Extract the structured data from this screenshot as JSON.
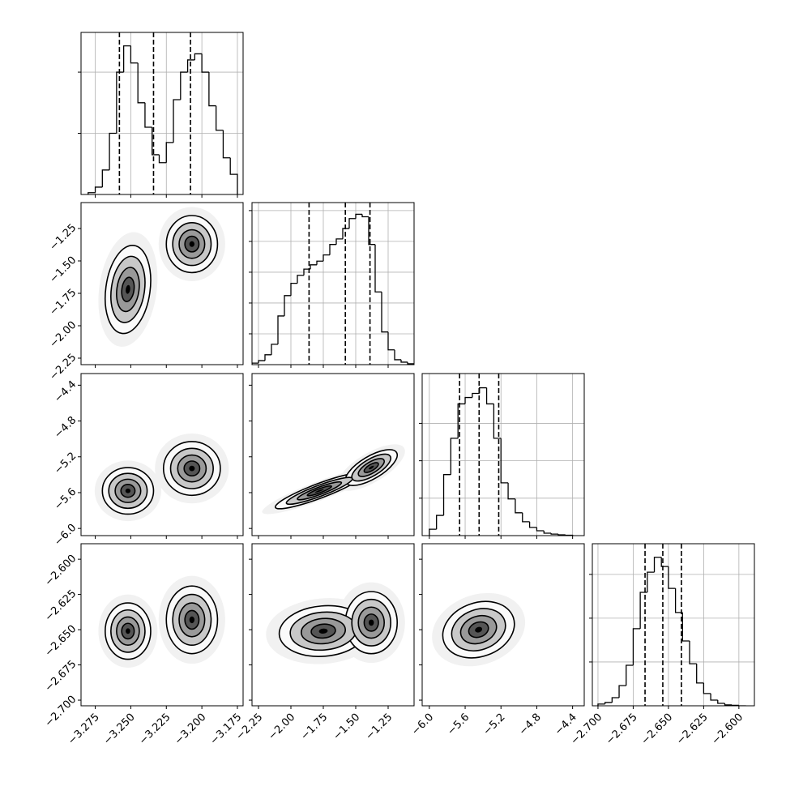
{
  "chart_data": {
    "type": "corner",
    "color": "#000000",
    "grid": true,
    "parameters": [
      {
        "lim": [
          -3.285,
          -3.171
        ],
        "ticks": [
          {
            "value": -3.275,
            "label": "−3.275"
          },
          {
            "value": -3.25,
            "label": "−3.250"
          },
          {
            "value": -3.225,
            "label": "−3.225"
          },
          {
            "value": -3.2,
            "label": "−3.200"
          },
          {
            "value": -3.175,
            "label": "−3.175"
          }
        ]
      },
      {
        "lim": [
          -2.3,
          -1.05
        ],
        "ticks": [
          {
            "value": -2.25,
            "label": "−2.25"
          },
          {
            "value": -2.0,
            "label": "−2.00"
          },
          {
            "value": -1.75,
            "label": "−1.75"
          },
          {
            "value": -1.5,
            "label": "−1.50"
          },
          {
            "value": -1.25,
            "label": "−1.25"
          }
        ]
      },
      {
        "lim": [
          -6.08,
          -4.27
        ],
        "ticks": [
          {
            "value": -6.0,
            "label": "−6.0"
          },
          {
            "value": -5.6,
            "label": "−5.6"
          },
          {
            "value": -5.2,
            "label": "−5.2"
          },
          {
            "value": -4.8,
            "label": "−4.8"
          },
          {
            "value": -4.4,
            "label": "−4.4"
          }
        ]
      },
      {
        "lim": [
          -2.704,
          -2.589
        ],
        "ticks": [
          {
            "value": -2.7,
            "label": "−2.700"
          },
          {
            "value": -2.675,
            "label": "−2.675"
          },
          {
            "value": -2.65,
            "label": "−2.650"
          },
          {
            "value": -2.625,
            "label": "−2.625"
          },
          {
            "value": -2.6,
            "label": "−2.600"
          }
        ]
      }
    ],
    "histograms": [
      {
        "bins": [
          -3.28,
          -3.275,
          -3.27,
          -3.265,
          -3.26,
          -3.255,
          -3.25,
          -3.245,
          -3.24,
          -3.235,
          -3.23,
          -3.225,
          -3.22,
          -3.215,
          -3.21,
          -3.205,
          -3.2,
          -3.195,
          -3.19,
          -3.185,
          -3.18,
          -3.175
        ],
        "counts": [
          30,
          120,
          400,
          1000,
          2000,
          2430,
          2150,
          1500,
          1100,
          650,
          520,
          850,
          1550,
          2000,
          2200,
          2300,
          2000,
          1450,
          1050,
          600,
          330
        ],
        "ylim": [
          0,
          2650
        ],
        "yticks": [
          1000,
          2000
        ],
        "quantiles": [
          -3.258,
          -3.234,
          -3.208
        ]
      },
      {
        "bins": [
          -2.3,
          -2.25,
          -2.2,
          -2.15,
          -2.1,
          -2.05,
          -2.0,
          -1.95,
          -1.9,
          -1.85,
          -1.8,
          -1.75,
          -1.7,
          -1.65,
          -1.6,
          -1.55,
          -1.5,
          -1.45,
          -1.4,
          -1.35,
          -1.3,
          -1.25,
          -1.2,
          -1.15,
          -1.1,
          -1.05
        ],
        "counts": [
          25,
          65,
          160,
          330,
          790,
          1120,
          1320,
          1450,
          1550,
          1620,
          1680,
          1780,
          1950,
          2040,
          2210,
          2370,
          2440,
          2400,
          1950,
          1180,
          530,
          240,
          80,
          40,
          15
        ],
        "ylim": [
          0,
          2630
        ],
        "yticks": [
          500,
          1000,
          1500,
          2000,
          2500
        ],
        "quantiles": [
          -1.86,
          -1.58,
          -1.39
        ]
      },
      {
        "bins": [
          -6.0,
          -5.92,
          -5.84,
          -5.76,
          -5.68,
          -5.6,
          -5.52,
          -5.44,
          -5.36,
          -5.28,
          -5.2,
          -5.12,
          -5.04,
          -4.96,
          -4.88,
          -4.8,
          -4.72,
          -4.64,
          -4.56,
          -4.48,
          -4.4
        ],
        "counts": [
          170,
          540,
          1630,
          2600,
          3520,
          3690,
          3800,
          3950,
          3520,
          2600,
          1410,
          980,
          610,
          370,
          220,
          130,
          65,
          40,
          20,
          10
        ],
        "ylim": [
          0,
          4330
        ],
        "yticks": [
          1000,
          2000,
          3000
        ],
        "quantiles": [
          -5.662,
          -5.444,
          -5.225
        ]
      },
      {
        "bins": [
          -2.7,
          -2.695,
          -2.69,
          -2.685,
          -2.68,
          -2.675,
          -2.67,
          -2.665,
          -2.66,
          -2.655,
          -2.65,
          -2.645,
          -2.64,
          -2.635,
          -2.63,
          -2.625,
          -2.62,
          -2.615,
          -2.61,
          -2.605,
          -2.6,
          -2.595
        ],
        "counts": [
          40,
          75,
          185,
          460,
          925,
          1760,
          2590,
          3050,
          3390,
          3180,
          2680,
          2130,
          1480,
          960,
          520,
          280,
          130,
          55,
          20,
          10,
          0
        ],
        "ylim": [
          0,
          3700
        ],
        "yticks": [
          1000,
          2000,
          3000
        ],
        "quantiles": [
          -2.6666,
          -2.654,
          -2.6408
        ]
      }
    ],
    "panels": [
      {
        "x_param": 0,
        "y_param": 1,
        "clusters": [
          {
            "mean": [
              -3.252,
              -1.72
            ],
            "sd": [
              0.008,
              0.17
            ],
            "corr": 0.2
          },
          {
            "mean": [
              -3.207,
              -1.37
            ],
            "sd": [
              0.009,
              0.11
            ],
            "corr": 0.0
          }
        ]
      },
      {
        "x_param": 0,
        "y_param": 2,
        "clusters": [
          {
            "mean": [
              -3.252,
              -5.58
            ],
            "sd": [
              0.009,
              0.13
            ],
            "corr": 0.0
          },
          {
            "mean": [
              -3.207,
              -5.33
            ],
            "sd": [
              0.01,
              0.15
            ],
            "corr": 0.0
          }
        ]
      },
      {
        "x_param": 1,
        "y_param": 2,
        "clusters": [
          {
            "mean": [
              -1.78,
              -5.58
            ],
            "sd": [
              0.17,
              0.1
            ],
            "corr": 0.9
          },
          {
            "mean": [
              -1.38,
              -5.32
            ],
            "sd": [
              0.1,
              0.1
            ],
            "corr": 0.7
          }
        ]
      },
      {
        "x_param": 0,
        "y_param": 3,
        "clusters": [
          {
            "mean": [
              -3.252,
              -2.651
            ],
            "sd": [
              0.008,
              0.01
            ],
            "corr": 0.0
          },
          {
            "mean": [
              -3.207,
              -2.643
            ],
            "sd": [
              0.009,
              0.012
            ],
            "corr": 0.0
          }
        ]
      },
      {
        "x_param": 1,
        "y_param": 3,
        "clusters": [
          {
            "mean": [
              -1.75,
              -2.651
            ],
            "sd": [
              0.17,
              0.009
            ],
            "corr": 0.1
          },
          {
            "mean": [
              -1.38,
              -2.645
            ],
            "sd": [
              0.1,
              0.011
            ],
            "corr": 0.0
          }
        ]
      },
      {
        "x_param": 2,
        "y_param": 3,
        "clusters": [
          {
            "mean": [
              -5.45,
              -2.65
            ],
            "sd": [
              0.2,
              0.01
            ],
            "corr": 0.2
          }
        ]
      }
    ]
  }
}
